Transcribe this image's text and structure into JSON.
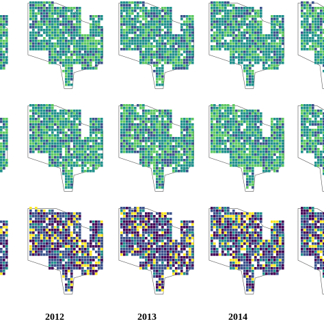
{
  "figure": {
    "years": [
      "2012",
      "2013",
      "2014"
    ],
    "rows": 3,
    "colormap": "viridis",
    "colors": {
      "dark": "#440154",
      "indigo": "#3b528b",
      "teal": "#21918c",
      "green": "#5ec962",
      "yellow": "#fde725",
      "outline": "#555555"
    }
  }
}
